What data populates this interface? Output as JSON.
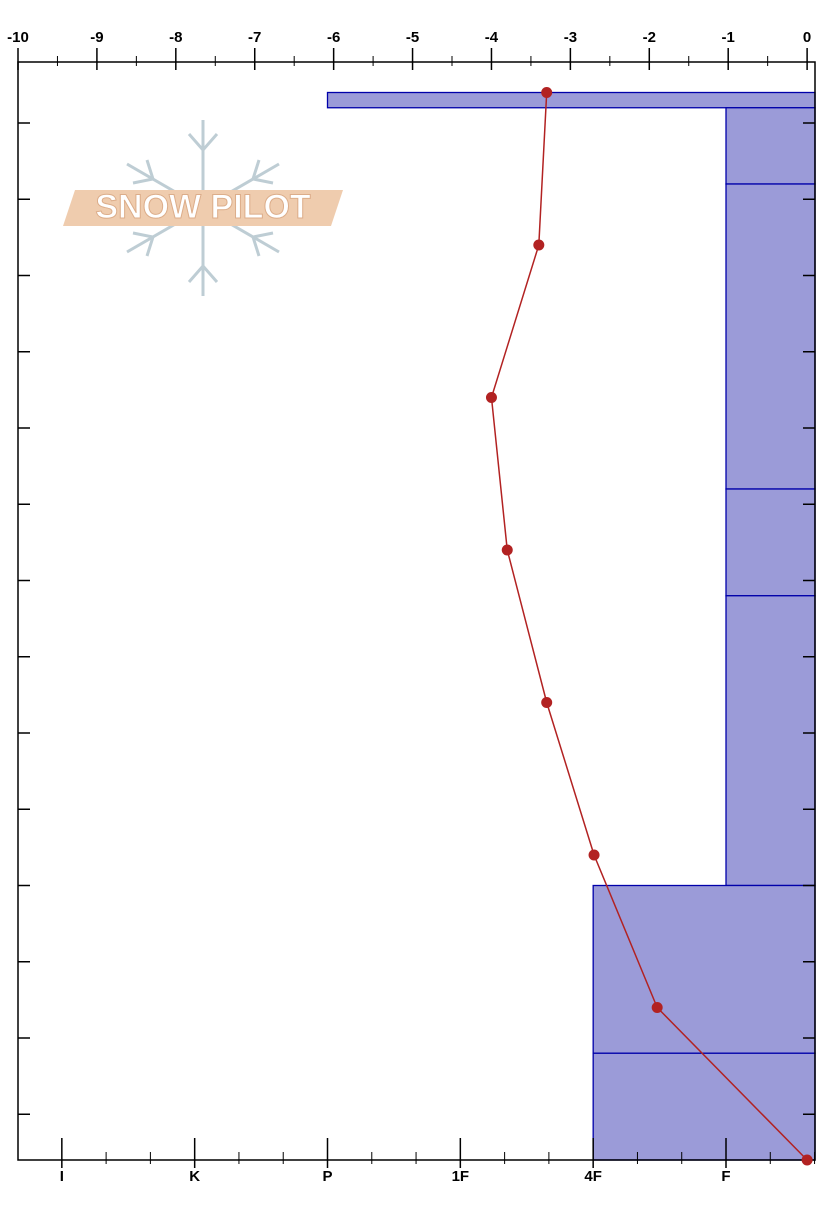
{
  "chart_data": {
    "type": "snow-profile",
    "watermark": "SNOW PILOT",
    "xlim": [
      -10,
      0.1
    ],
    "xticks": [
      -10,
      -9,
      -8,
      -7,
      -6,
      -5,
      -4,
      -3,
      -2,
      -1,
      0
    ],
    "ylim": [
      0,
      144
    ],
    "yticks": [
      6,
      16,
      26,
      36,
      46,
      56,
      66,
      76,
      86,
      96,
      106,
      116,
      126,
      136
    ],
    "hardness_lim": [
      6.33,
      0.33
    ],
    "hardness_ticks": [
      {
        "value": 6,
        "label": "I"
      },
      {
        "value": 5,
        "label": "K"
      },
      {
        "value": 4,
        "label": "P"
      },
      {
        "value": 3,
        "label": "1F"
      },
      {
        "value": 2,
        "label": "4F"
      },
      {
        "value": 1,
        "label": "F"
      }
    ],
    "layers": {
      "top": [
        140,
        138,
        128,
        88,
        74,
        36,
        14
      ],
      "bottom": [
        138,
        128,
        88,
        74,
        36,
        14,
        0
      ],
      "hardness": [
        4,
        1,
        1,
        1,
        1,
        2,
        2
      ],
      "color": "#9b9bd8",
      "edge_color": "#0000aa"
    },
    "temperature_profile": {
      "height": [
        140,
        120,
        100,
        80,
        60,
        40,
        20,
        0
      ],
      "values": [
        -3.3,
        -3.4,
        -4.0,
        -3.8,
        -3.3,
        -2.7,
        -1.9,
        0
      ],
      "color": "#b22222"
    }
  }
}
